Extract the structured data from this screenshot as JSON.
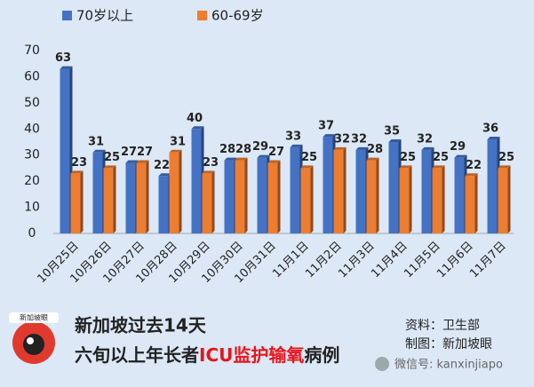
{
  "chart_data": {
    "type": "bar",
    "categories": [
      "10月25日",
      "10月26日",
      "10月27日",
      "10月28日",
      "10月29日",
      "10月30日",
      "10月31日",
      "11月1日",
      "11月2日",
      "11月3日",
      "11月4日",
      "11月5日",
      "11月6日",
      "11月7日"
    ],
    "series": [
      {
        "name": "70岁以上",
        "color": "#4472c4",
        "values": [
          63,
          31,
          27,
          22,
          40,
          28,
          29,
          33,
          37,
          32,
          35,
          32,
          29,
          36
        ]
      },
      {
        "name": "60-69岁",
        "color": "#ed7d31",
        "values": [
          23,
          25,
          27,
          31,
          23,
          28,
          27,
          25,
          32,
          28,
          25,
          25,
          22,
          25
        ]
      }
    ],
    "ylim": [
      0,
      70
    ],
    "yticks": [
      0,
      10,
      20,
      30,
      40,
      50,
      60,
      70
    ]
  },
  "footer": {
    "title_line1": "新加坡过去14天",
    "title_line2": [
      "六旬以上年长者",
      "ICU监护输氧",
      "病例"
    ],
    "source": "资料：卫生部",
    "credit": "制图：新加坡眼",
    "logo_text": "新加坡眼",
    "watermark": "微信号: kanxinjiapo"
  }
}
